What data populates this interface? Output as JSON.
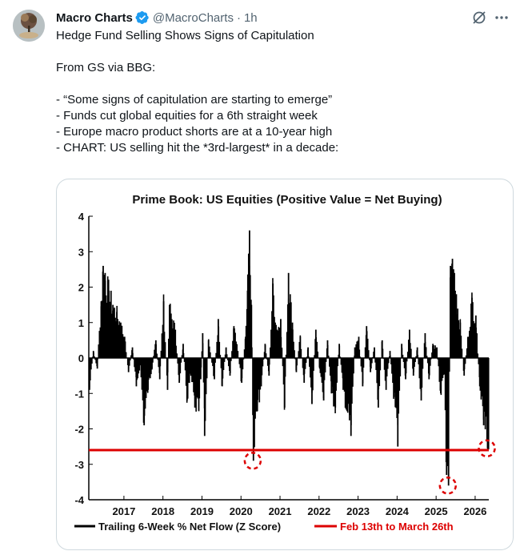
{
  "author": {
    "name": "Macro Charts",
    "handle": "@MacroCharts",
    "separator": "·",
    "time": "1h"
  },
  "icons": {
    "verified": "verified-badge-icon",
    "grok": "grok-icon",
    "more": "more-options-icon",
    "avatar": "avatar-image"
  },
  "colors": {
    "verified": "#1d9bf0",
    "secondary_text": "#536471",
    "chart_bars": "#000000",
    "highlight_line": "#dd0000"
  },
  "tweet": {
    "line1": "Hedge Fund Selling Shows Signs of Capitulation",
    "line2": "From GS via BBG:",
    "line3": "- “Some signs of capitulation are starting to emerge”",
    "line4": "- Funds cut global equities for a 6th straight week",
    "line5": "- Europe macro product shorts are at a 10-year high",
    "line6": "- CHART: US selling hit the *3rd-largest* in a decade:"
  },
  "chart_data": {
    "type": "bar",
    "title": "Prime Book: US Equities (Positive Value = Net Buying)",
    "ylim": [
      -4,
      4
    ],
    "yticks": [
      "4",
      "3",
      "2",
      "1",
      "0",
      "-1",
      "-2",
      "-3",
      "-4"
    ],
    "xticks": [
      "2017",
      "2018",
      "2019",
      "2020",
      "2021",
      "2022",
      "2023",
      "2024",
      "2025",
      "2026"
    ],
    "x_range": [
      2016.1,
      2026.35
    ],
    "threshold_value": -2.6,
    "highlighted_lows": [
      {
        "x": 2020.3,
        "value": -2.9
      },
      {
        "x": 2025.3,
        "value": -3.6
      },
      {
        "x": 2026.3,
        "value": -2.55
      }
    ],
    "series_points": [
      [
        2016.1,
        -0.9
      ],
      [
        2016.2,
        0.2
      ],
      [
        2016.3,
        -0.3
      ],
      [
        2016.4,
        1.6
      ],
      [
        2016.45,
        2.6
      ],
      [
        2016.5,
        2.4
      ],
      [
        2016.6,
        1.9
      ],
      [
        2016.7,
        1.5
      ],
      [
        2016.8,
        1.3
      ],
      [
        2016.9,
        1.0
      ],
      [
        2017.0,
        0.6
      ],
      [
        2017.1,
        -0.4
      ],
      [
        2017.2,
        0.3
      ],
      [
        2017.3,
        -0.8
      ],
      [
        2017.4,
        -0.2
      ],
      [
        2017.5,
        -1.9
      ],
      [
        2017.6,
        -0.9
      ],
      [
        2017.7,
        -0.3
      ],
      [
        2017.8,
        0.5
      ],
      [
        2017.9,
        -0.6
      ],
      [
        2018.0,
        1.6
      ],
      [
        2018.1,
        -0.9
      ],
      [
        2018.15,
        1.5
      ],
      [
        2018.3,
        0.8
      ],
      [
        2018.4,
        -0.7
      ],
      [
        2018.5,
        0.4
      ],
      [
        2018.6,
        -1.2
      ],
      [
        2018.7,
        -0.5
      ],
      [
        2018.8,
        -1.4
      ],
      [
        2018.9,
        -1.5
      ],
      [
        2018.95,
        -0.6
      ],
      [
        2019.0,
        0.7
      ],
      [
        2019.05,
        -2.2
      ],
      [
        2019.15,
        0.5
      ],
      [
        2019.3,
        -0.6
      ],
      [
        2019.4,
        1.1
      ],
      [
        2019.5,
        -0.8
      ],
      [
        2019.6,
        0.3
      ],
      [
        2019.7,
        -0.5
      ],
      [
        2019.8,
        0.9
      ],
      [
        2019.9,
        0.2
      ],
      [
        2020.0,
        -0.7
      ],
      [
        2020.1,
        0.6
      ],
      [
        2020.15,
        1.9
      ],
      [
        2020.2,
        3.6
      ],
      [
        2020.25,
        1.5
      ],
      [
        2020.3,
        -2.9
      ],
      [
        2020.4,
        -1.5
      ],
      [
        2020.5,
        -0.8
      ],
      [
        2020.6,
        0.4
      ],
      [
        2020.7,
        -0.5
      ],
      [
        2020.8,
        2.1
      ],
      [
        2020.9,
        0.8
      ],
      [
        2021.0,
        1.1
      ],
      [
        2021.1,
        -1.4
      ],
      [
        2021.2,
        2.4
      ],
      [
        2021.3,
        1.0
      ],
      [
        2021.4,
        -0.4
      ],
      [
        2021.5,
        0.6
      ],
      [
        2021.6,
        -0.7
      ],
      [
        2021.7,
        0.3
      ],
      [
        2021.8,
        -1.3
      ],
      [
        2021.9,
        0.8
      ],
      [
        2022.0,
        -0.3
      ],
      [
        2022.1,
        -1.2
      ],
      [
        2022.2,
        0.5
      ],
      [
        2022.3,
        -1.0
      ],
      [
        2022.4,
        -1.4
      ],
      [
        2022.5,
        0.4
      ],
      [
        2022.6,
        -0.9
      ],
      [
        2022.7,
        -1.5
      ],
      [
        2022.8,
        -2.2
      ],
      [
        2022.9,
        0.3
      ],
      [
        2023.0,
        0.6
      ],
      [
        2023.1,
        -0.8
      ],
      [
        2023.2,
        0.9
      ],
      [
        2023.3,
        -0.4
      ],
      [
        2023.4,
        0.3
      ],
      [
        2023.5,
        -1.4
      ],
      [
        2023.6,
        0.5
      ],
      [
        2023.7,
        -0.9
      ],
      [
        2023.8,
        0.2
      ],
      [
        2023.9,
        -1.1
      ],
      [
        2024.0,
        -2.5
      ],
      [
        2024.1,
        0.4
      ],
      [
        2024.2,
        -0.6
      ],
      [
        2024.3,
        0.8
      ],
      [
        2024.4,
        -0.5
      ],
      [
        2024.5,
        0.3
      ],
      [
        2024.6,
        -1.2
      ],
      [
        2024.7,
        0.7
      ],
      [
        2024.8,
        -0.6
      ],
      [
        2024.9,
        0.4
      ],
      [
        2025.0,
        0.3
      ],
      [
        2025.1,
        -1.0
      ],
      [
        2025.2,
        -0.4
      ],
      [
        2025.25,
        -3.3
      ],
      [
        2025.3,
        -3.6
      ],
      [
        2025.35,
        2.6
      ],
      [
        2025.4,
        2.8
      ],
      [
        2025.45,
        2.4
      ],
      [
        2025.5,
        1.8
      ],
      [
        2025.6,
        1.0
      ],
      [
        2025.7,
        -0.5
      ],
      [
        2025.8,
        0.6
      ],
      [
        2025.9,
        1.7
      ],
      [
        2026.0,
        1.2
      ],
      [
        2026.1,
        -0.8
      ],
      [
        2026.2,
        -1.9
      ],
      [
        2026.3,
        -2.55
      ]
    ],
    "legend": [
      {
        "label": "Trailing 6-Week % Net Flow (Z Score)",
        "color": "#000000"
      },
      {
        "label": "Feb 13th to March 26th",
        "color": "#dd0000"
      }
    ]
  }
}
